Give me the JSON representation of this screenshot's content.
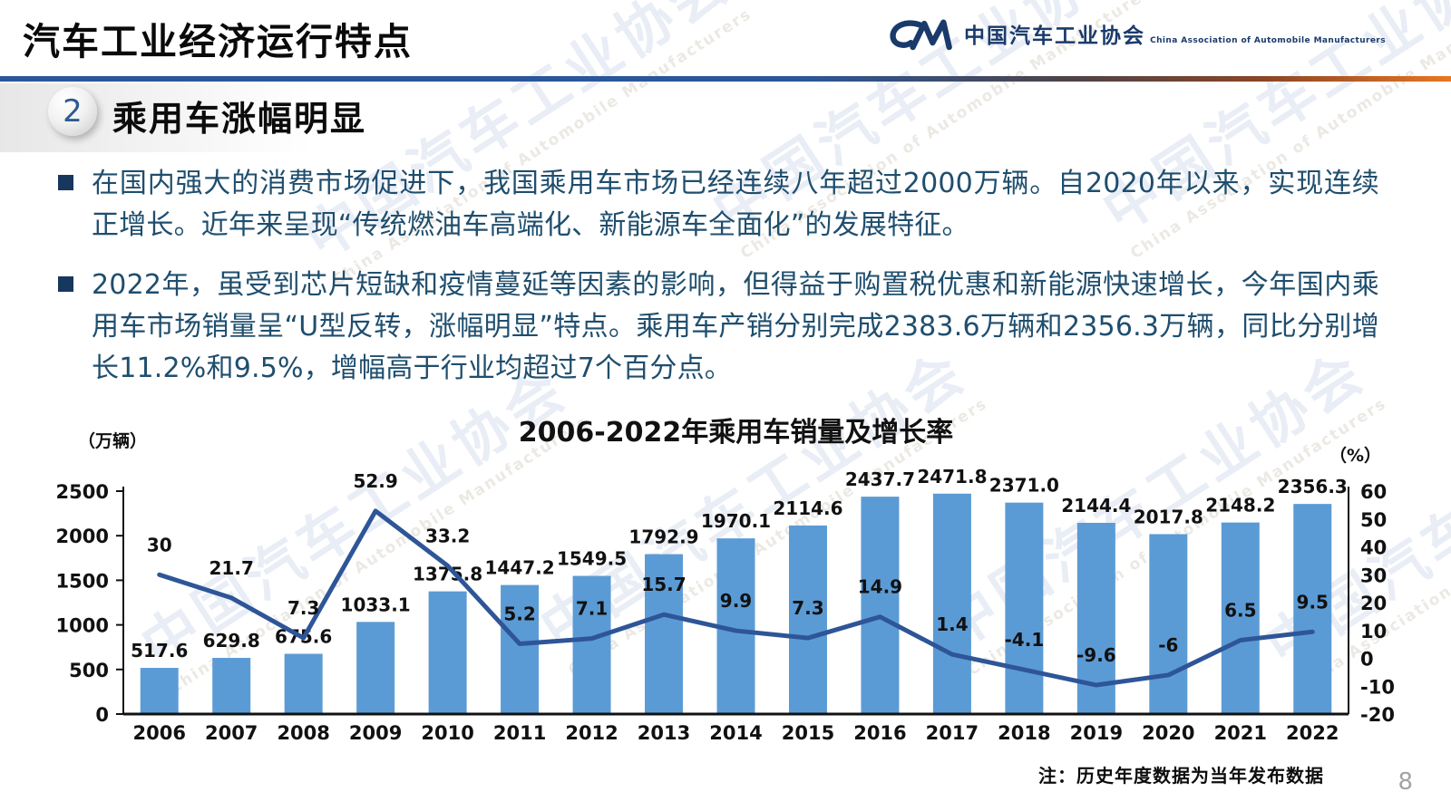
{
  "slide": {
    "title": "汽车工业经济运行特点",
    "footnote": "注：历史年度数据为当年发布数据",
    "page_number": "8"
  },
  "logo": {
    "cn": "中国汽车工业协会",
    "en": "China Association of Automobile Manufacturers"
  },
  "section": {
    "number": "2",
    "heading": "乘用车涨幅明显"
  },
  "bullets": [
    "在国内强大的消费市场促进下，我国乘用车市场已经连续八年超过2000万辆。自2020年以来，实现连续正增长。近年来呈现“传统燃油车高端化、新能源车全面化”的发展特征。",
    "2022年，虽受到芯片短缺和疫情蔓延等因素的影响，但得益于购置税优惠和新能源快速增长，今年国内乘用车市场销量呈“U型反转，涨幅明显”特点。乘用车产销分别完成2383.6万辆和2356.3万辆，同比分别增长11.2%和9.5%，增幅高于行业均超过7个百分点。"
  ],
  "watermark": {
    "cn": "中国汽车工业协会",
    "en": "China Association of Automobile Manufacturers"
  },
  "chart_data": {
    "type": "combo",
    "title": "2006-2022年乘用车销量及增长率",
    "categories": [
      "2006",
      "2007",
      "2008",
      "2009",
      "2010",
      "2011",
      "2012",
      "2013",
      "2014",
      "2015",
      "2016",
      "2017",
      "2018",
      "2019",
      "2020",
      "2021",
      "2022"
    ],
    "series": [
      {
        "name": "乘用车销量",
        "type": "bar",
        "unit": "万辆",
        "values": [
          517.6,
          629.8,
          675.6,
          1033.1,
          1375.8,
          1447.2,
          1549.5,
          1792.9,
          1970.1,
          2114.6,
          2437.7,
          2471.8,
          2371.0,
          2144.4,
          2017.8,
          2148.2,
          2356.3
        ],
        "labels": [
          "517.6",
          "629.8",
          "675.6",
          "1033.1",
          "1375.8",
          "1447.2",
          "1549.5",
          "1792.9",
          "1970.1",
          "2114.6",
          "2437.7",
          "2471.8",
          "2371.0",
          "2144.4",
          "2017.8",
          "2148.2",
          "2356.3"
        ]
      },
      {
        "name": "增长率",
        "type": "line",
        "unit": "%",
        "values": [
          30,
          21.7,
          7.3,
          52.9,
          33.2,
          5.2,
          7.1,
          15.7,
          9.9,
          7.3,
          14.9,
          1.4,
          -4.1,
          -9.6,
          -6,
          6.5,
          9.5
        ],
        "labels": [
          "30",
          "21.7",
          "7.3",
          "52.9",
          "33.2",
          "5.2",
          "7.1",
          "15.7",
          "9.9",
          "7.3",
          "14.9",
          "1.4",
          "-4.1",
          "-9.6",
          "-6",
          "6.5",
          "9.5"
        ]
      }
    ],
    "left_axis": {
      "label": "（万辆）",
      "min": 0,
      "max": 2500,
      "ticks": [
        0,
        500,
        1000,
        1500,
        2000,
        2500
      ]
    },
    "right_axis": {
      "label": "（%）",
      "min": -20,
      "max": 60,
      "ticks": [
        -20,
        -10,
        0,
        10,
        20,
        30,
        40,
        50,
        60
      ]
    },
    "colors": {
      "bar": "#5B9BD5",
      "line": "#2E5597",
      "label": "#111111",
      "axis": "#111111"
    },
    "grid": false,
    "legend": "none"
  }
}
